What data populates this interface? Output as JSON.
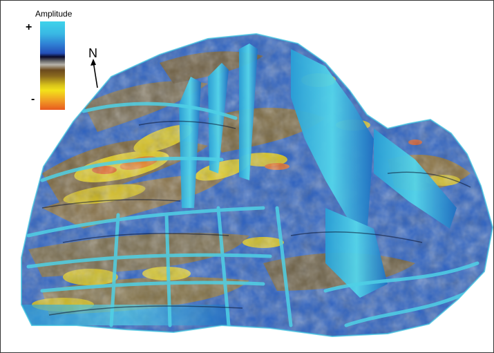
{
  "legend": {
    "title": "Amplitude",
    "plus": "+",
    "minus": "-",
    "colors": [
      "#3fd3ea",
      "#2f7fd4",
      "#0a0a2a",
      "#b8b4aa",
      "#8b6a1e",
      "#f3e21a",
      "#e85a1f"
    ]
  },
  "north": {
    "label": "N"
  }
}
